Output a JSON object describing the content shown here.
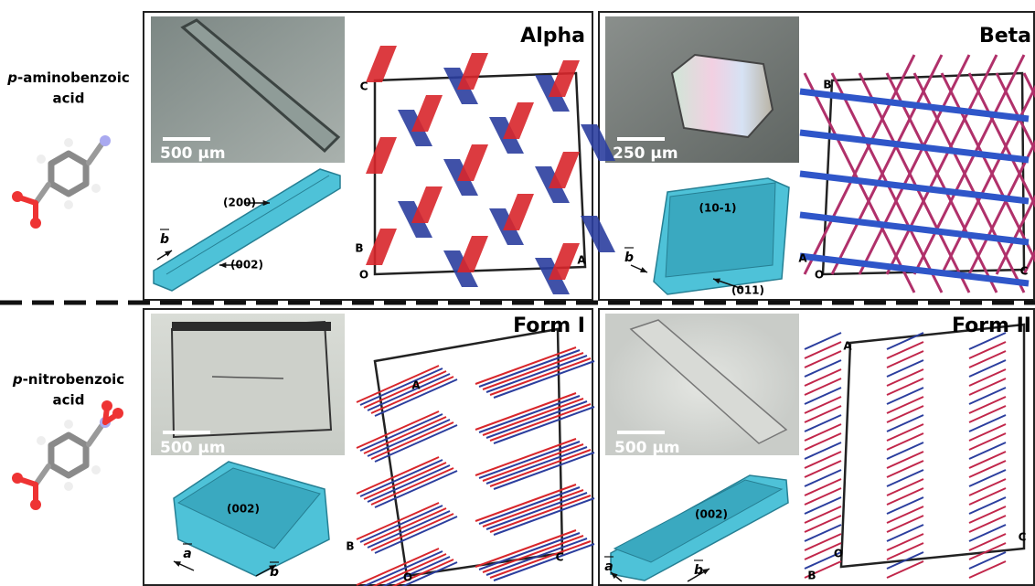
{
  "rows": [
    {
      "molecule": {
        "prefix": "p",
        "line1": "-aminobenzoic",
        "line2": "acid"
      },
      "panels": [
        {
          "title": "Alpha",
          "scale": "500 µm",
          "facets": [
            "(200)",
            "(002)"
          ],
          "vector": "b",
          "axes": [
            "C",
            "B",
            "O",
            "A"
          ]
        },
        {
          "title": "Beta",
          "scale": "250 µm",
          "facets": [
            "(10-1)",
            "(011)"
          ],
          "vector": "b",
          "axes": [
            "B",
            "A",
            "O",
            "C"
          ]
        }
      ]
    },
    {
      "molecule": {
        "prefix": "p",
        "line1": "-nitrobenzoic",
        "line2": "acid"
      },
      "panels": [
        {
          "title": "Form I",
          "scale": "500 µm",
          "facets": [
            "(002)"
          ],
          "vectors": [
            "a",
            "b"
          ],
          "axes": [
            "A",
            "B",
            "O",
            "C"
          ]
        },
        {
          "title": "Form II",
          "scale": "500 µm",
          "facets": [
            "(002)"
          ],
          "vectors": [
            "a",
            "b"
          ],
          "axes": [
            "A",
            "O",
            "B",
            "C"
          ]
        }
      ]
    }
  ]
}
